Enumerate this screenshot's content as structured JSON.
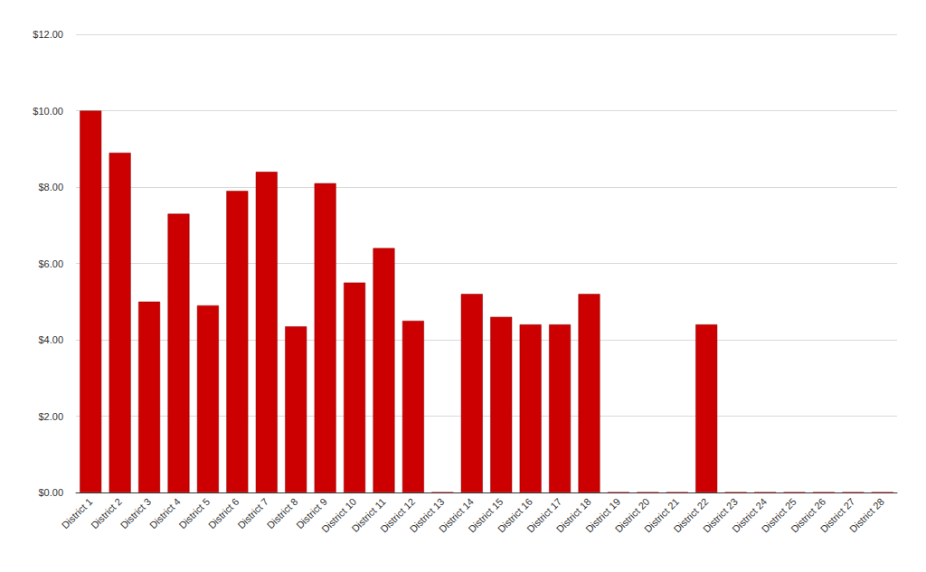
{
  "chart_data": {
    "type": "bar",
    "categories": [
      "District 1",
      "District 2",
      "District 3",
      "District 4",
      "District 5",
      "District 6",
      "District 7",
      "District 8",
      "District 9",
      "District 10",
      "District 11",
      "District 12",
      "District 13",
      "District 14",
      "District 15",
      "District 16",
      "District 17",
      "District 18",
      "District 19",
      "District 20",
      "District 21",
      "District 22",
      "District 23",
      "District 24",
      "District 25",
      "District 26",
      "District 27",
      "District 28"
    ],
    "values": [
      10.0,
      8.9,
      5.0,
      7.3,
      4.9,
      7.9,
      8.4,
      4.35,
      8.1,
      5.5,
      6.4,
      4.5,
      0,
      5.2,
      4.6,
      4.4,
      4.4,
      5.2,
      0,
      0,
      0,
      4.4,
      0,
      0,
      0,
      0,
      0,
      0
    ],
    "color": "#cc0000",
    "ylim": [
      0,
      12
    ],
    "yticks": [
      {
        "value": 0,
        "label": "$0.00"
      },
      {
        "value": 2,
        "label": "$2.00"
      },
      {
        "value": 4,
        "label": "$4.00"
      },
      {
        "value": 6,
        "label": "$6.00"
      },
      {
        "value": 8,
        "label": "$8.00"
      },
      {
        "value": 10,
        "label": "$10.00"
      },
      {
        "value": 12,
        "label": "$12.00"
      }
    ],
    "grid": true
  }
}
